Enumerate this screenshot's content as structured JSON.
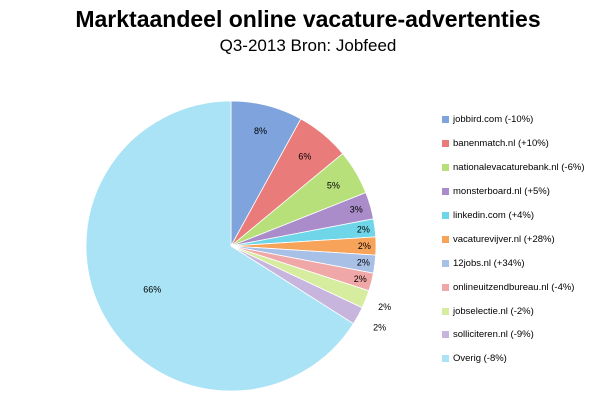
{
  "chart_data": {
    "type": "pie",
    "title": "Marktaandeel online vacature-advertenties",
    "subtitle": "Q3-2013 Bron: Jobfeed",
    "slices": [
      {
        "name": "jobbird.com (-10%)",
        "value": 8,
        "label": "8%",
        "color": "#7ea3dd"
      },
      {
        "name": "banenmatch.nl (+10%)",
        "value": 6,
        "label": "6%",
        "color": "#e97b7b"
      },
      {
        "name": "nationalevacaturebank.nl (-6%)",
        "value": 5,
        "label": "5%",
        "color": "#b7e07a"
      },
      {
        "name": "monsterboard.nl (+5%)",
        "value": 3,
        "label": "3%",
        "color": "#a98cc9"
      },
      {
        "name": "linkedin.com (+4%)",
        "value": 2,
        "label": "2%",
        "color": "#6fd6ea"
      },
      {
        "name": "vacaturevijver.nl (+28%)",
        "value": 2,
        "label": "2%",
        "color": "#f7a35a"
      },
      {
        "name": "12jobs.nl (+34%)",
        "value": 2,
        "label": "2%",
        "color": "#a8bfe6"
      },
      {
        "name": "onlineuitzendbureau.nl (-4%)",
        "value": 2,
        "label": "2%",
        "color": "#f0a7a7"
      },
      {
        "name": "jobselectie.nl (-2%)",
        "value": 2,
        "label": "2%",
        "color": "#d6ec9e"
      },
      {
        "name": "solliciteren.nl (-9%)",
        "value": 2,
        "label": "2%",
        "color": "#c7b5de"
      },
      {
        "name": "Overig (-8%)",
        "value": 66,
        "label": "66%",
        "color": "#a9e3f5"
      }
    ],
    "legend_position": "right"
  }
}
